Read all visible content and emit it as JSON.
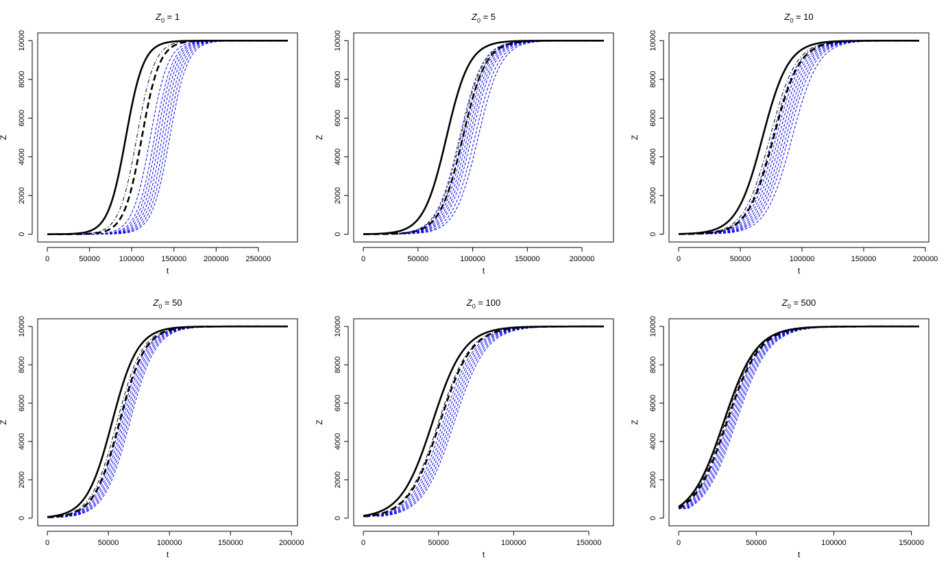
{
  "chart_data": [
    {
      "type": "line",
      "title_var": "Z",
      "title_sub": "0",
      "title_rest": " = 1",
      "xlabel": "t",
      "ylabel": "Z",
      "xlim": [
        0,
        285000
      ],
      "ylim": [
        0,
        10000
      ],
      "xticks": [
        0,
        50000,
        100000,
        150000,
        200000,
        250000
      ],
      "yticks": [
        0,
        2000,
        4000,
        6000,
        8000,
        10000
      ],
      "z0": 1,
      "K": 10000,
      "x_end": 285000,
      "bold_solid_midpoint": 93000,
      "bold_dashed_midpoint": 112000,
      "dashdot_midpoint": 106000,
      "blue_dashed_midpoints": [
        122000,
        127000,
        130000,
        133000,
        136000,
        139000,
        142000,
        145000
      ],
      "scale": 10500
    },
    {
      "type": "line",
      "title_var": "Z",
      "title_sub": "0",
      "title_rest": " = 5",
      "xlabel": "t",
      "ylabel": "Z",
      "xlim": [
        0,
        220000
      ],
      "ylim": [
        0,
        10000
      ],
      "xticks": [
        0,
        50000,
        100000,
        150000,
        200000
      ],
      "yticks": [
        0,
        2000,
        4000,
        6000,
        8000,
        10000
      ],
      "z0": 5,
      "K": 10000,
      "x_end": 220000,
      "bold_solid_midpoint": 76000,
      "bold_dashed_midpoint": 91000,
      "dashdot_midpoint": 89000,
      "blue_dashed_midpoints": [
        88000,
        91000,
        93000,
        95000,
        97000,
        99000,
        102000,
        105000
      ],
      "scale": 10500
    },
    {
      "type": "line",
      "title_var": "Z",
      "title_sub": "0",
      "title_rest": " = 10",
      "xlabel": "t",
      "ylabel": "Z",
      "xlim": [
        0,
        195000
      ],
      "ylim": [
        0,
        10000
      ],
      "xticks": [
        0,
        50000,
        100000,
        150000,
        200000
      ],
      "yticks": [
        0,
        2000,
        4000,
        6000,
        8000,
        10000
      ],
      "z0": 10,
      "K": 10000,
      "x_end": 195000,
      "bold_solid_midpoint": 68000,
      "bold_dashed_midpoint": 77000,
      "dashdot_midpoint": 74000,
      "blue_dashed_midpoints": [
        76000,
        79000,
        81000,
        83000,
        85000,
        87000,
        89000,
        92000
      ],
      "scale": 10500
    },
    {
      "type": "line",
      "title_var": "Z",
      "title_sub": "0",
      "title_rest": " = 50",
      "xlabel": "t",
      "ylabel": "Z",
      "xlim": [
        0,
        197000
      ],
      "ylim": [
        0,
        10000
      ],
      "xticks": [
        0,
        50000,
        100000,
        150000,
        200000
      ],
      "yticks": [
        0,
        2000,
        4000,
        6000,
        8000,
        10000
      ],
      "z0": 50,
      "K": 10000,
      "x_end": 197000,
      "bold_solid_midpoint": 53000,
      "bold_dashed_midpoint": 59000,
      "dashdot_midpoint": 57000,
      "blue_dashed_midpoints": [
        60000,
        61500,
        63000,
        64500,
        66000,
        67500
      ],
      "scale": 10500
    },
    {
      "type": "line",
      "title_var": "Z",
      "title_sub": "0",
      "title_rest": " = 100",
      "xlabel": "t",
      "ylabel": "Z",
      "xlim": [
        0,
        160000
      ],
      "ylim": [
        0,
        10000
      ],
      "xticks": [
        0,
        50000,
        100000,
        150000
      ],
      "yticks": [
        0,
        2000,
        4000,
        6000,
        8000,
        10000
      ],
      "z0": 100,
      "K": 10000,
      "x_end": 160000,
      "bold_solid_midpoint": 46000,
      "bold_dashed_midpoint": 51000,
      "dashdot_midpoint": 50000,
      "blue_dashed_midpoints": [
        53000,
        54500,
        56000,
        57500,
        59000,
        60500
      ],
      "scale": 10500
    },
    {
      "type": "line",
      "title_var": "Z",
      "title_sub": "0",
      "title_rest": " = 500",
      "xlabel": "t",
      "ylabel": "Z",
      "xlim": [
        0,
        155000
      ],
      "ylim": [
        0,
        10000
      ],
      "xticks": [
        0,
        50000,
        100000,
        150000
      ],
      "yticks": [
        0,
        2000,
        4000,
        6000,
        8000,
        10000
      ],
      "z0": 500,
      "K": 10000,
      "x_end": 155000,
      "bold_solid_midpoint": 29000,
      "bold_dashed_midpoint": 31000,
      "dashdot_midpoint": 30000,
      "blue_dashed_midpoints": [
        32000,
        33000,
        34000,
        35000,
        36000,
        37000
      ],
      "scale": 10500
    }
  ],
  "colors": {
    "black": "#000000",
    "blue": "#0000ee"
  }
}
